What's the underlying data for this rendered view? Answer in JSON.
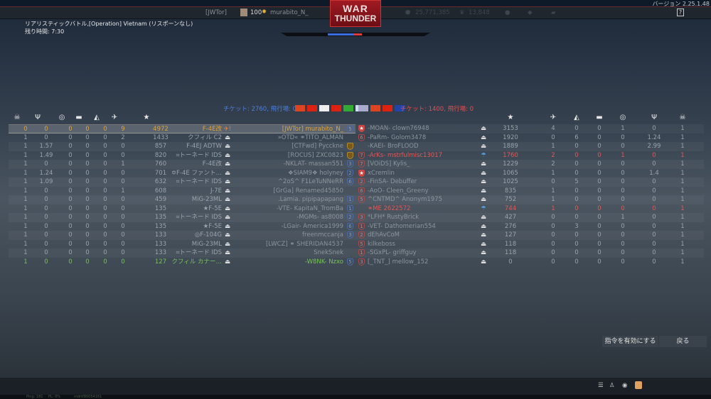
{
  "header": {
    "clan": "[JWTor]",
    "level": "100",
    "player": "murabito_N_",
    "logo_line1": "WAR",
    "logo_line2": "THUNDER",
    "silver_lions": "25,771,385",
    "golden_eagles": "13,848",
    "version": "バージョン 2.25.1.48",
    "help": "?"
  },
  "mission": {
    "title": "リアリスティックバトル,[Operation] Vietnam (リスポーンなし)",
    "time_left": "残り時間: 7:30"
  },
  "teams": {
    "left_tickets": "チケット: 2760, 飛行場: 0",
    "right_tickets": "チケット: 1400, 飛行場: 0",
    "left_flags": [
      "North Vietnam",
      "China",
      "Japan",
      "China",
      "Italy",
      "Israel"
    ],
    "right_flags": [
      "USA",
      "North Vietnam",
      "China",
      "UK"
    ],
    "left_color": "#4a7fe0",
    "right_color": "#e05050"
  },
  "columns": {
    "left": [
      "deaths",
      "assists",
      "captures",
      "ground_kills",
      "naval_kills",
      "air_kills",
      "score"
    ],
    "right": [
      "score",
      "air_kills",
      "naval_kills",
      "ground_kills",
      "captures",
      "assists",
      "deaths"
    ],
    "icons": {
      "deaths": "☠",
      "assists": "Ψ",
      "captures": "◎",
      "ground_kills": "▬",
      "naval_kills": "◭",
      "air_kills": "✈",
      "score": "★"
    }
  },
  "left_team": [
    {
      "stats": [
        "0",
        "0",
        "0",
        "0",
        "0",
        "9",
        "4972"
      ],
      "vehicle": "F-4E改",
      "name": "[JWTor] murabito_N_",
      "badge": "5",
      "state": "highlight"
    },
    {
      "stats": [
        "1",
        "0",
        "0",
        "0",
        "0",
        "2",
        "1433"
      ],
      "vehicle": "クフィル C2",
      "name": "»OTD« ⚭TITO_ALMAN",
      "badge": ""
    },
    {
      "stats": [
        "1",
        "1.57",
        "0",
        "0",
        "0",
        "0",
        "857"
      ],
      "vehicle": "F-4EJ ADTW",
      "name": "[CTFwd] Pycckne",
      "badge": "g"
    },
    {
      "stats": [
        "1",
        "1.49",
        "0",
        "0",
        "0",
        "0",
        "820"
      ],
      "vehicle": "⌗トーネード IDS",
      "name": "[ROCUS] ZXC0823",
      "badge": "g"
    },
    {
      "stats": [
        "1",
        "0",
        "0",
        "0",
        "0",
        "1",
        "760"
      ],
      "vehicle": "F-4E改",
      "name": "-NKLAT- massan551",
      "badge": "3"
    },
    {
      "stats": [
        "1",
        "1.24",
        "0",
        "0",
        "0",
        "0",
        "701"
      ],
      "vehicle": "✡F-4E ファント…",
      "name": "❖SIAM9❖ holyney",
      "badge": "2"
    },
    {
      "stats": [
        "1",
        "1.09",
        "0",
        "0",
        "0",
        "0",
        "632"
      ],
      "vehicle": "⌗トーネード IDS",
      "name": "^2oS^ F1LeTuNNeRR",
      "badge": "6"
    },
    {
      "stats": [
        "1",
        "0",
        "0",
        "0",
        "0",
        "1",
        "608"
      ],
      "vehicle": "J-7E",
      "name": "[GrGa] Renamed45850",
      "badge": ""
    },
    {
      "stats": [
        "1",
        "0",
        "0",
        "0",
        "0",
        "0",
        "459"
      ],
      "vehicle": "MiG-23ML",
      "name": ".Lamia. pipipapapang",
      "badge": "1"
    },
    {
      "stats": [
        "1",
        "0",
        "0",
        "0",
        "0",
        "0",
        "135"
      ],
      "vehicle": "★F-5E",
      "name": "-VTE- KapitaN_TromBa",
      "badge": "1"
    },
    {
      "stats": [
        "1",
        "0",
        "0",
        "0",
        "0",
        "0",
        "135"
      ],
      "vehicle": "⌗トーネード IDS",
      "name": "-MGMs- as8008",
      "badge": "2"
    },
    {
      "stats": [
        "1",
        "0",
        "0",
        "0",
        "0",
        "0",
        "135"
      ],
      "vehicle": "★F-5E",
      "name": "-LGair- America1999",
      "badge": "6"
    },
    {
      "stats": [
        "1",
        "0",
        "0",
        "0",
        "0",
        "0",
        "133"
      ],
      "vehicle": "◎F-104G",
      "name": "freenmccanja",
      "badge": "3"
    },
    {
      "stats": [
        "1",
        "0",
        "0",
        "0",
        "0",
        "0",
        "133"
      ],
      "vehicle": "MiG-23ML",
      "name": "[LWCZ] ⚭ SHERIDAN4537",
      "badge": ""
    },
    {
      "stats": [
        "1",
        "0",
        "0",
        "0",
        "0",
        "0",
        "133"
      ],
      "vehicle": "⌗トーネード IDS",
      "name": "SnekSnek",
      "badge": ""
    },
    {
      "stats": [
        "1",
        "0",
        "0",
        "0",
        "0",
        "0",
        "127"
      ],
      "vehicle": "クフィル カナー…",
      "name": "-W8NK- Nzxo",
      "badge": "5",
      "state": "squad"
    }
  ],
  "right_team": [
    {
      "badge": "★",
      "name": "-MOAN- clown76948",
      "stats": [
        "3153",
        "4",
        "0",
        "0",
        "1",
        "0",
        "1"
      ]
    },
    {
      "badge": "6",
      "name": "-PaRm- Golom3478",
      "stats": [
        "1920",
        "0",
        "6",
        "0",
        "0",
        "1.24",
        "1"
      ]
    },
    {
      "badge": "",
      "name": "-KAEI- BroFLOOD",
      "stats": [
        "1889",
        "1",
        "0",
        "0",
        "0",
        "2.99",
        "1"
      ]
    },
    {
      "badge": "7",
      "name": "-ArKs- mstrfulmisc13017",
      "stats": [
        "1760",
        "2",
        "0",
        "0",
        "1",
        "0",
        "1"
      ],
      "state": "enemy-hl",
      "status": "parachute"
    },
    {
      "badge": "7",
      "name": "[VOiDS] Kylis_",
      "stats": [
        "1229",
        "2",
        "0",
        "0",
        "0",
        "0",
        "1"
      ]
    },
    {
      "badge": "★",
      "name": "xCremlin",
      "stats": [
        "1065",
        "1",
        "0",
        "0",
        "0",
        "1.4",
        "1"
      ]
    },
    {
      "badge": "2",
      "name": "-FinSA- Debuffer",
      "stats": [
        "1025",
        "0",
        "5",
        "0",
        "0",
        "0",
        "1"
      ]
    },
    {
      "badge": "6",
      "name": "-AoO- Cleen_Greeny",
      "stats": [
        "835",
        "1",
        "0",
        "0",
        "0",
        "0",
        "1"
      ]
    },
    {
      "badge": "5",
      "name": "^CNTMD^ Anonym1975",
      "stats": [
        "752",
        "1",
        "0",
        "0",
        "0",
        "0",
        "1"
      ]
    },
    {
      "badge": "",
      "name": "⚭ME 2622572",
      "stats": [
        "744",
        "1",
        "0",
        "0",
        "0",
        "0",
        "1"
      ],
      "state": "enemy-hl",
      "status": "parachute"
    },
    {
      "badge": "3",
      "name": "*LFH* RustyBrick",
      "stats": [
        "427",
        "0",
        "0",
        "0",
        "1",
        "0",
        "1"
      ]
    },
    {
      "badge": "1",
      "name": "-VET- Dathomerian554",
      "stats": [
        "276",
        "0",
        "3",
        "0",
        "0",
        "0",
        "1"
      ]
    },
    {
      "badge": "2",
      "name": "dEhAvCoM",
      "stats": [
        "127",
        "0",
        "0",
        "0",
        "0",
        "0",
        "1"
      ]
    },
    {
      "badge": "5",
      "name": "kilkeboss",
      "stats": [
        "118",
        "0",
        "0",
        "0",
        "0",
        "0",
        "1"
      ]
    },
    {
      "badge": "1",
      "name": "-SGxPL- griffguy",
      "stats": [
        "118",
        "0",
        "0",
        "0",
        "0",
        "0",
        "1"
      ]
    },
    {
      "badge": "3",
      "name": "[_TNT_] mellow_152",
      "stats": [
        "0",
        "0",
        "0",
        "0",
        "0",
        "0",
        "1"
      ]
    }
  ],
  "buttons": {
    "activate_orders": "指令を有効にする",
    "back": "戻る"
  },
  "status_bar": {
    "ping": "Ping: 181",
    "pl": "PL: 0%",
    "session": "mdrtf80054161"
  }
}
